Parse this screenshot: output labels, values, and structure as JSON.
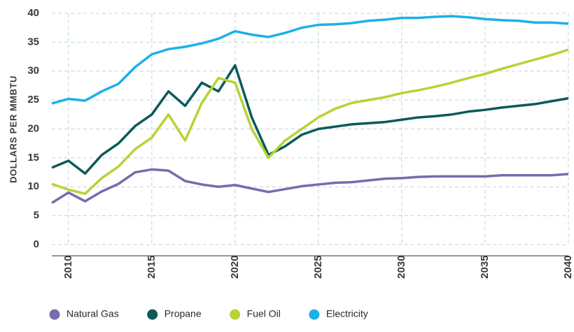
{
  "chart_data": {
    "type": "line",
    "y_label": "DOLLARS PER MMBTU",
    "x": [
      2009,
      2010,
      2011,
      2012,
      2013,
      2014,
      2015,
      2016,
      2017,
      2018,
      2019,
      2020,
      2021,
      2022,
      2023,
      2024,
      2025,
      2026,
      2027,
      2028,
      2029,
      2030,
      2031,
      2032,
      2033,
      2034,
      2035,
      2036,
      2037,
      2038,
      2039,
      2040
    ],
    "xlim": [
      2009,
      2040
    ],
    "xticks": [
      2010,
      2015,
      2020,
      2025,
      2030,
      2035,
      2040
    ],
    "ylim": [
      0,
      40
    ],
    "yticks": [
      0,
      5,
      10,
      15,
      20,
      25,
      30,
      35,
      40
    ],
    "grid": true,
    "legend": "bottom-left",
    "series": [
      {
        "name": "Natural Gas",
        "color": "#7a6aae",
        "values": [
          7.2,
          9,
          7.5,
          9.2,
          10.5,
          12.5,
          13,
          12.8,
          11,
          10.4,
          10,
          10.3,
          9.7,
          9.1,
          9.6,
          10.1,
          10.4,
          10.7,
          10.8,
          11.1,
          11.4,
          11.5,
          11.7,
          11.8,
          11.8,
          11.8,
          11.8,
          12,
          12,
          12,
          12,
          12.2
        ]
      },
      {
        "name": "Propane",
        "color": "#0b5a58",
        "values": [
          13.3,
          14.5,
          12.3,
          15.5,
          17.5,
          20.5,
          22.5,
          26.5,
          24,
          28,
          26.5,
          31,
          22,
          15.5,
          17,
          19,
          20,
          20.4,
          20.8,
          21,
          21.2,
          21.6,
          22,
          22.2,
          22.5,
          23,
          23.3,
          23.7,
          24,
          24.3,
          24.8,
          25.3
        ]
      },
      {
        "name": "Fuel Oil",
        "color": "#b6d334",
        "values": [
          10.5,
          9.5,
          8.8,
          11.5,
          13.5,
          16.5,
          18.5,
          22.5,
          18,
          24.5,
          28.8,
          28,
          20,
          15,
          18,
          20,
          22,
          23.5,
          24.5,
          25,
          25.5,
          26.2,
          26.7,
          27.3,
          28,
          28.8,
          29.5,
          30.4,
          31.2,
          32,
          32.8,
          33.7
        ]
      },
      {
        "name": "Electricity",
        "color": "#1cb1e7",
        "values": [
          24.4,
          25.2,
          24.9,
          26.5,
          27.8,
          30.7,
          32.9,
          33.8,
          34.2,
          34.8,
          35.6,
          36.9,
          36.3,
          35.9,
          36.6,
          37.5,
          38,
          38.1,
          38.3,
          38.7,
          38.9,
          39.2,
          39.2,
          39.4,
          39.5,
          39.3,
          39,
          38.8,
          38.7,
          38.4,
          38.4,
          38.2
        ]
      }
    ]
  }
}
